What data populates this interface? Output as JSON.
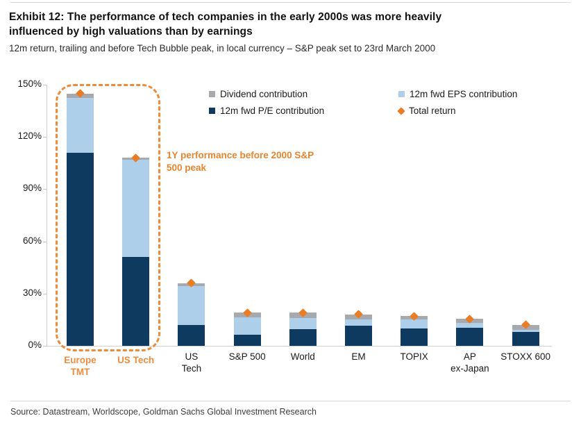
{
  "header": {
    "title_line1": "Exhibit 12: The performance of tech companies in the early 2000s was more heavily",
    "title_line2": "influenced by high valuations than by earnings",
    "subtitle": "12m return, trailing and before Tech Bubble peak, in local currency – S&P peak set to 23rd March 2000"
  },
  "legend": {
    "items": [
      {
        "label": "Dividend contribution",
        "swatch": "square",
        "color": "#a7a9ac"
      },
      {
        "label": "12m fwd EPS contribution",
        "swatch": "square",
        "color": "#aecfe9"
      },
      {
        "label": "12m fwd P/E contribution",
        "swatch": "square",
        "color": "#0e3a5f"
      },
      {
        "label": "Total return",
        "swatch": "diamond",
        "color": "#e87d25"
      }
    ]
  },
  "annotation": {
    "line1": "1Y performance before 2000 S&P",
    "line2": "500 peak"
  },
  "chart_data": {
    "type": "bar",
    "stacked": true,
    "title": "Exhibit 12: The performance of tech companies in the early 2000s was more heavily influenced by high valuations than by earnings",
    "subtitle": "12m return, trailing and before Tech Bubble peak, in local currency – S&P peak set to 23rd March 2000",
    "categories": [
      "Europe TMT",
      "US Tech",
      "US Tech",
      "S&P 500",
      "World",
      "EM",
      "TOPIX",
      "AP ex-Japan",
      "STOXX 600"
    ],
    "series": [
      {
        "name": "12m fwd P/E contribution",
        "color": "#0e3a5f",
        "values": [
          111,
          51,
          12,
          6.5,
          9.5,
          11.5,
          10,
          10.5,
          8
        ]
      },
      {
        "name": "12m fwd EPS contribution",
        "color": "#aecfe9",
        "values": [
          31.5,
          56,
          22.5,
          10,
          6.5,
          3.5,
          5,
          2.5,
          1
        ]
      },
      {
        "name": "Dividend contribution",
        "color": "#a7a9ac",
        "values": [
          2.5,
          1,
          1.5,
          2.5,
          3,
          3,
          2,
          2.5,
          3
        ]
      }
    ],
    "markers": {
      "name": "Total return",
      "color": "#e87d25",
      "values": [
        145,
        108,
        36,
        19,
        19,
        18,
        17,
        15.5,
        12
      ]
    },
    "x_labels": [
      {
        "lines": [
          "Europe",
          "TMT"
        ],
        "highlight": true
      },
      {
        "lines": [
          "US Tech"
        ],
        "highlight": true
      },
      {
        "lines": [
          "US",
          "Tech"
        ],
        "highlight": false
      },
      {
        "lines": [
          "S&P 500"
        ],
        "highlight": false
      },
      {
        "lines": [
          "World"
        ],
        "highlight": false
      },
      {
        "lines": [
          "EM"
        ],
        "highlight": false
      },
      {
        "lines": [
          "TOPIX"
        ],
        "highlight": false
      },
      {
        "lines": [
          "AP",
          "ex-Japan"
        ],
        "highlight": false
      },
      {
        "lines": [
          "STOXX 600"
        ],
        "highlight": false
      }
    ],
    "y_axis": {
      "tick_labels": [
        "0%",
        "30%",
        "60%",
        "90%",
        "120%",
        "150%"
      ],
      "tick_values": [
        0,
        30,
        60,
        90,
        120,
        150
      ]
    },
    "ylim": [
      0,
      150
    ],
    "grid": false,
    "legend_position": "top-center",
    "highlight_annotation": "1Y performance before 2000 S&P 500 peak",
    "highlighted_categories": [
      "Europe TMT",
      "US Tech"
    ]
  },
  "footer": {
    "source": "Source: Datastream, Worldscope, Goldman Sachs Global Investment Research"
  },
  "colors": {
    "pe_dark_blue": "#0e3a5f",
    "eps_light_blue": "#aecfe9",
    "dividend_gray": "#a7a9ac",
    "total_return_orange": "#e87d25",
    "highlight_orange": "#ee8b38",
    "axis_gray": "#cfcfcf"
  }
}
